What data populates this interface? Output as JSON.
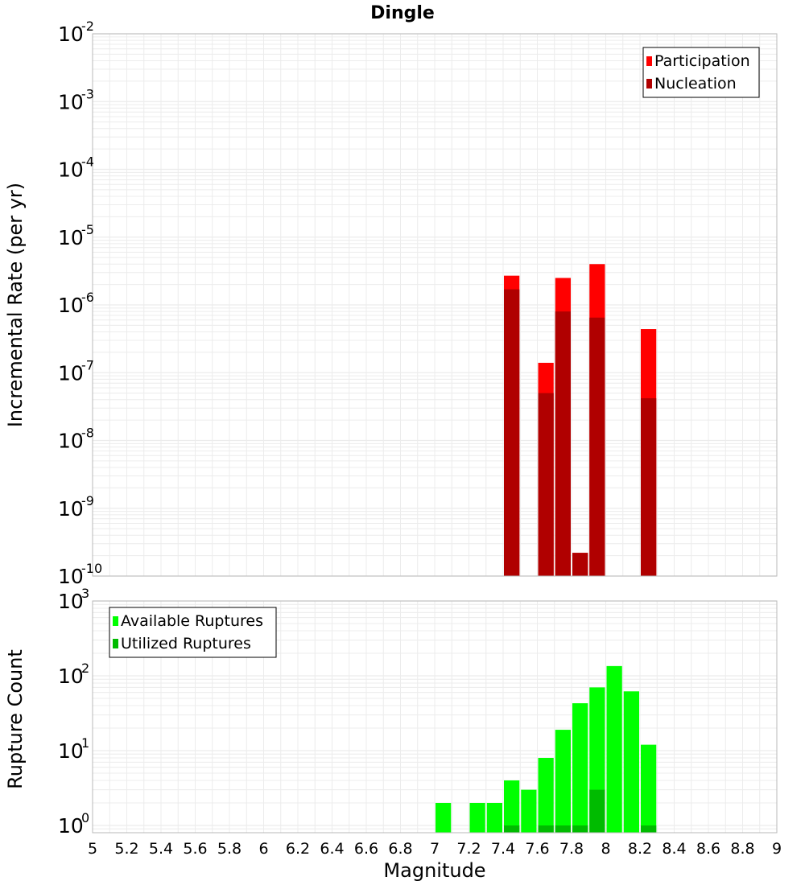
{
  "chart_data": [
    {
      "type": "bar",
      "title": "Dingle",
      "xlabel": "Magnitude",
      "ylabel": "Incremental Rate (per yr)",
      "y_scale": "log",
      "ylim": [
        1e-10,
        0.01
      ],
      "xlim": [
        5,
        9
      ],
      "y_ticks": [
        {
          "base": "10",
          "exp": "-2"
        },
        {
          "base": "10",
          "exp": "-3"
        },
        {
          "base": "10",
          "exp": "-4"
        },
        {
          "base": "10",
          "exp": "-5"
        },
        {
          "base": "10",
          "exp": "-6"
        },
        {
          "base": "10",
          "exp": "-7"
        },
        {
          "base": "10",
          "exp": "-8"
        },
        {
          "base": "10",
          "exp": "-9"
        },
        {
          "base": "10",
          "exp": "-10"
        }
      ],
      "legend": "top-right",
      "series": [
        {
          "name": "Participation",
          "color": "#ff0000",
          "x": [
            7.45,
            7.65,
            7.75,
            7.85,
            7.95,
            8.25
          ],
          "values": [
            2.7e-06,
            1.4e-07,
            2.5e-06,
            2.2e-10,
            4e-06,
            4.4e-07
          ]
        },
        {
          "name": "Nucleation",
          "color": "#b00000",
          "x": [
            7.45,
            7.65,
            7.75,
            7.85,
            7.95,
            8.25
          ],
          "values": [
            1.7e-06,
            5e-08,
            8e-07,
            2.2e-10,
            6.5e-07,
            4.2e-08
          ]
        }
      ]
    },
    {
      "type": "bar",
      "title": "",
      "xlabel": "Magnitude",
      "ylabel": "Rupture Count",
      "y_scale": "log",
      "ylim": [
        0.8,
        1000
      ],
      "xlim": [
        5,
        9
      ],
      "y_ticks": [
        {
          "base": "10",
          "exp": "3"
        },
        {
          "base": "10",
          "exp": "2"
        },
        {
          "base": "10",
          "exp": "1"
        },
        {
          "base": "10",
          "exp": "0"
        }
      ],
      "legend": "top-left",
      "series": [
        {
          "name": "Available Ruptures",
          "color": "#00ff00",
          "x": [
            7.05,
            7.25,
            7.35,
            7.45,
            7.55,
            7.65,
            7.75,
            7.85,
            7.95,
            8.05,
            8.15,
            8.25
          ],
          "values": [
            2,
            2,
            2,
            4,
            3,
            8,
            19,
            43,
            70,
            135,
            62,
            12
          ]
        },
        {
          "name": "Utilized Ruptures",
          "color": "#00bb00",
          "x": [
            7.45,
            7.65,
            7.75,
            7.85,
            7.95,
            8.25
          ],
          "values": [
            1,
            1,
            1,
            1,
            3,
            1
          ]
        }
      ]
    }
  ],
  "x_tick_labels": [
    "5",
    "5.2",
    "5.4",
    "5.6",
    "5.8",
    "6",
    "6.2",
    "6.4",
    "6.6",
    "6.8",
    "7",
    "7.2",
    "7.4",
    "7.6",
    "7.8",
    "8",
    "8.2",
    "8.4",
    "8.6",
    "8.8",
    "9"
  ],
  "colors": {
    "grid": "#ececec",
    "frame": "#b8b8b8"
  }
}
